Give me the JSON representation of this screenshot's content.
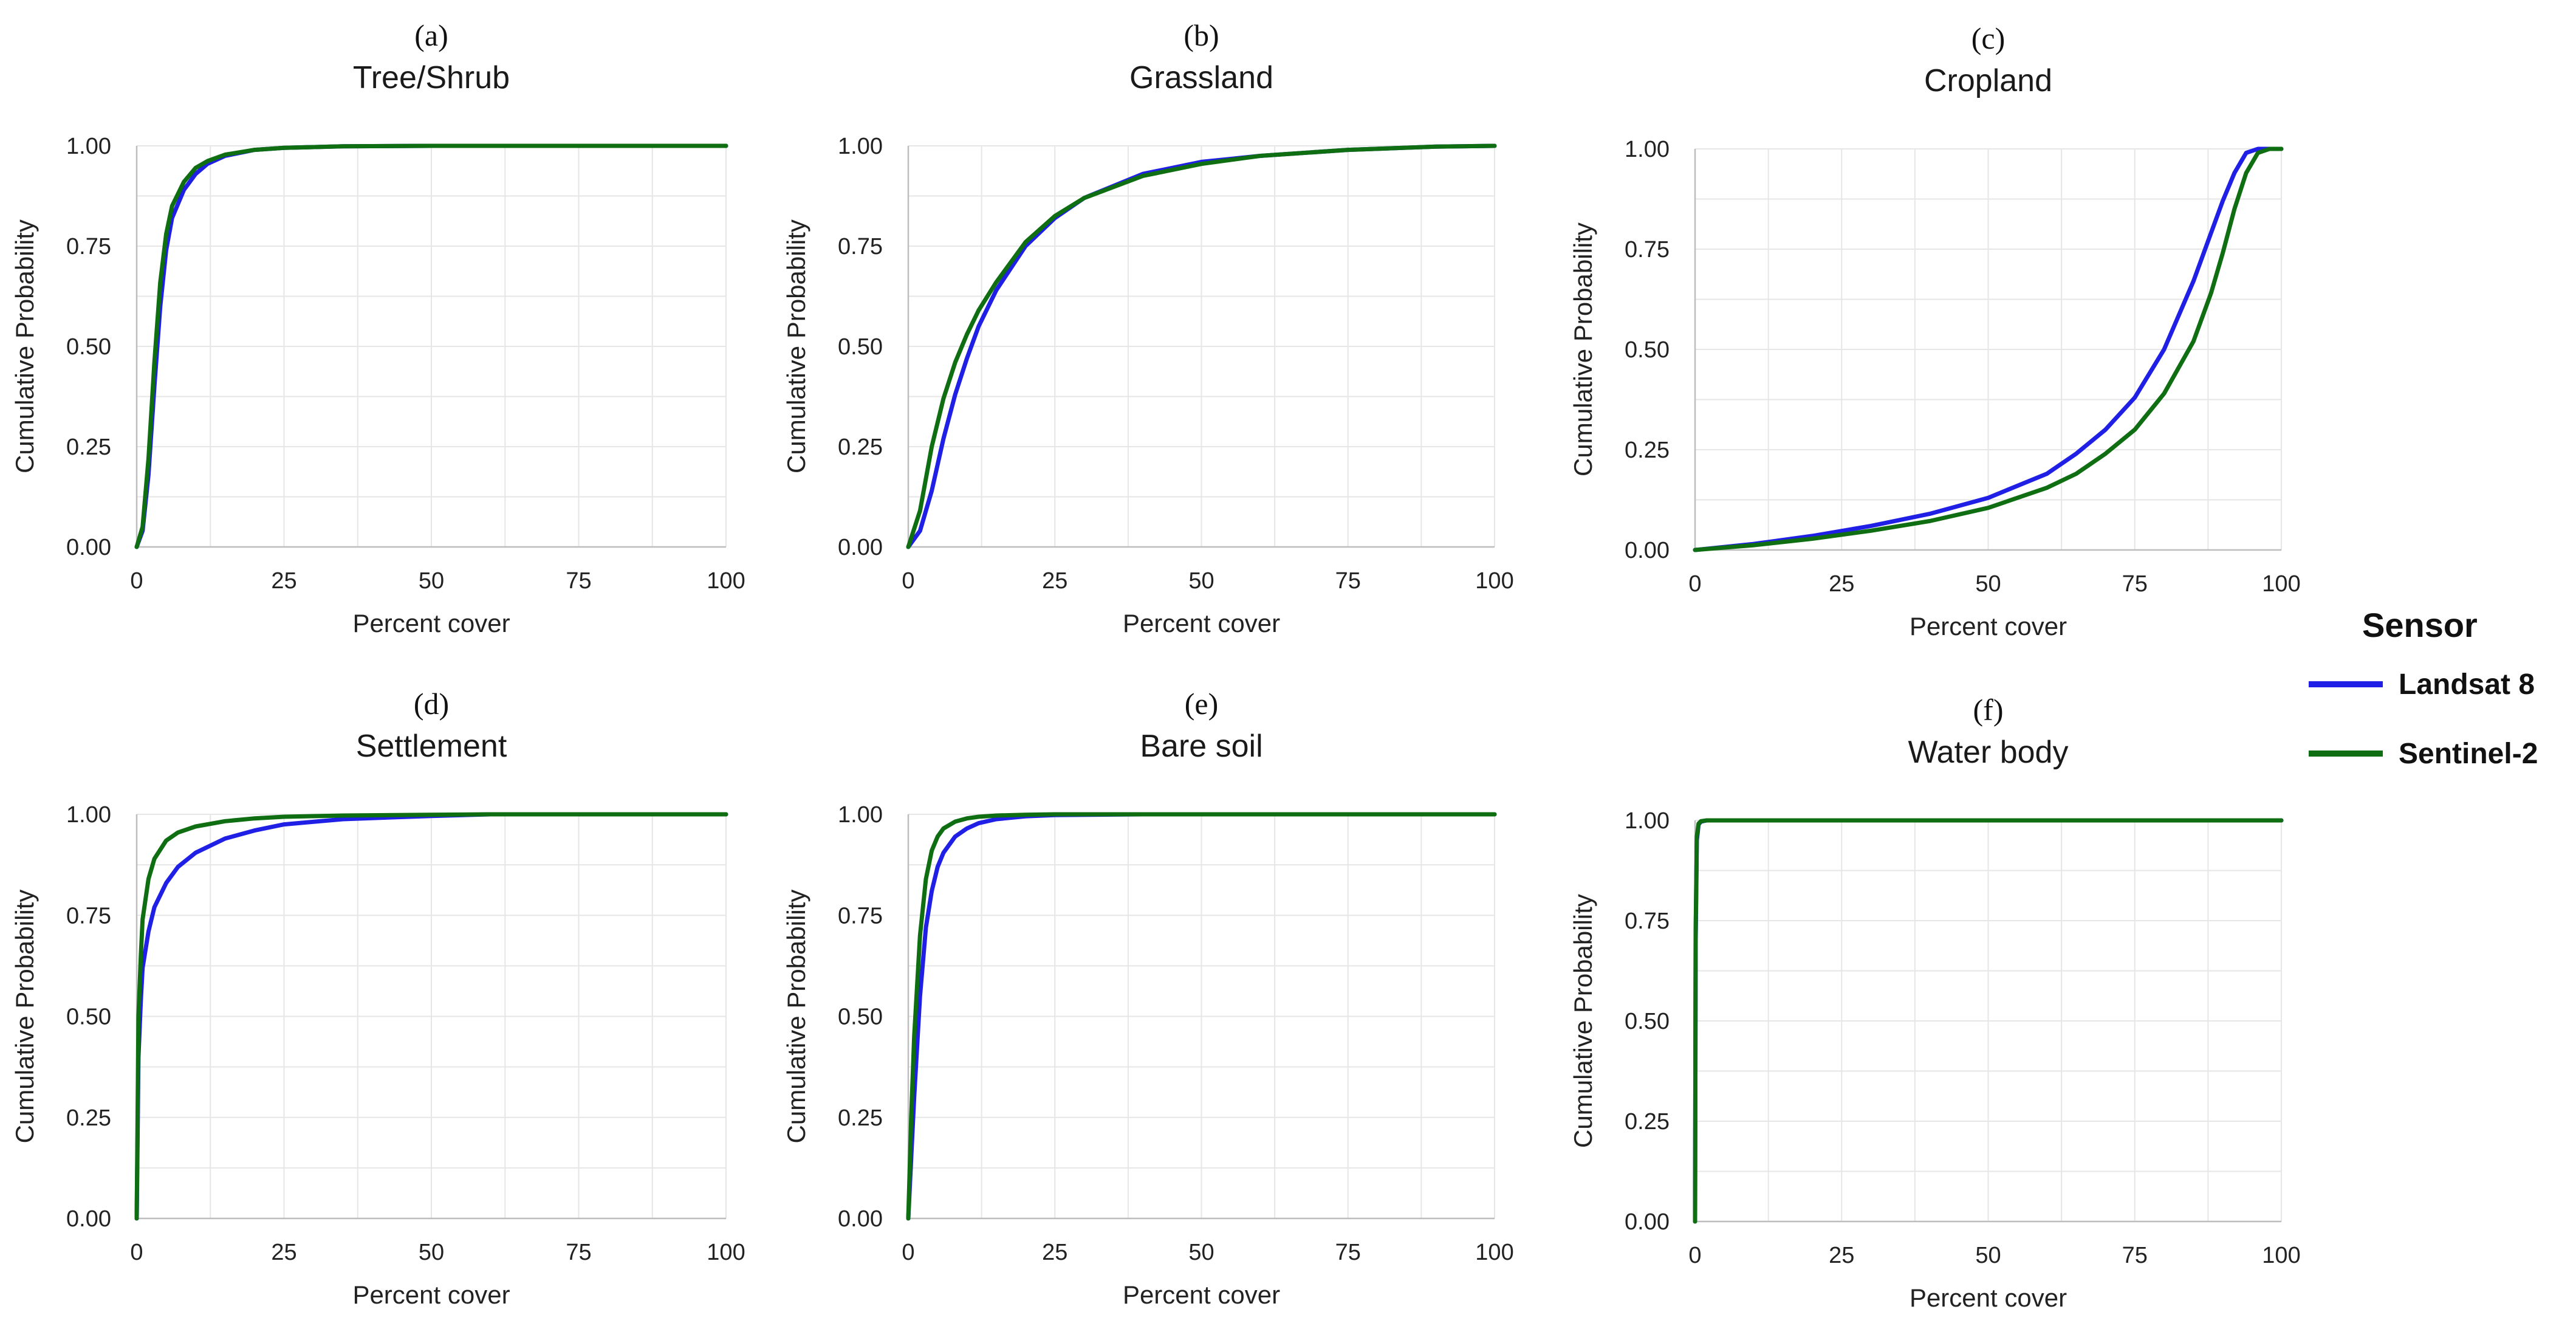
{
  "colors": {
    "landsat": "#1f1fe6",
    "sentinel": "#0f6e12",
    "grid": "#e6e6e6",
    "axis": "#bdbdbd"
  },
  "legend": {
    "title": "Sensor",
    "entries": [
      {
        "name": "Landsat 8",
        "color": "#1f1fe6"
      },
      {
        "name": "Sentinel-2",
        "color": "#0f6e12"
      }
    ]
  },
  "chart_data": [
    {
      "type": "line",
      "letter": "(a)",
      "title": "Tree/Shrub",
      "xlabel": "Percent cover",
      "ylabel": "Cumulative Probability",
      "xlim": [
        0,
        100
      ],
      "ylim": [
        0,
        1
      ],
      "xticks": [
        "0",
        "25",
        "50",
        "75",
        "100"
      ],
      "yticks": [
        "0.00",
        "0.25",
        "0.50",
        "0.75",
        "1.00"
      ],
      "series": [
        {
          "name": "Landsat 8",
          "x": [
            0,
            1,
            2,
            3,
            4,
            5,
            6,
            8,
            10,
            12,
            15,
            20,
            25,
            35,
            50,
            75,
            100
          ],
          "y": [
            0,
            0.04,
            0.18,
            0.4,
            0.6,
            0.74,
            0.82,
            0.89,
            0.93,
            0.955,
            0.975,
            0.99,
            0.995,
            0.999,
            1,
            1,
            1
          ]
        },
        {
          "name": "Sentinel-2",
          "x": [
            0,
            1,
            2,
            3,
            4,
            5,
            6,
            8,
            10,
            12,
            15,
            20,
            25,
            35,
            50,
            75,
            100
          ],
          "y": [
            0,
            0.05,
            0.22,
            0.46,
            0.66,
            0.78,
            0.85,
            0.91,
            0.945,
            0.962,
            0.978,
            0.99,
            0.995,
            0.999,
            1,
            1,
            1
          ]
        }
      ]
    },
    {
      "type": "line",
      "letter": "(b)",
      "title": "Grassland",
      "xlabel": "Percent cover",
      "ylabel": "Cumulative Probability",
      "xlim": [
        0,
        100
      ],
      "ylim": [
        0,
        1
      ],
      "xticks": [
        "0",
        "25",
        "50",
        "75",
        "100"
      ],
      "yticks": [
        "0.00",
        "0.25",
        "0.50",
        "0.75",
        "1.00"
      ],
      "series": [
        {
          "name": "Landsat 8",
          "x": [
            0,
            2,
            4,
            6,
            8,
            10,
            12,
            15,
            20,
            25,
            30,
            40,
            50,
            60,
            75,
            90,
            100
          ],
          "y": [
            0,
            0.04,
            0.14,
            0.27,
            0.38,
            0.47,
            0.55,
            0.64,
            0.75,
            0.82,
            0.87,
            0.93,
            0.96,
            0.975,
            0.99,
            0.998,
            1
          ]
        },
        {
          "name": "Sentinel-2",
          "x": [
            0,
            2,
            4,
            6,
            8,
            10,
            12,
            15,
            20,
            25,
            30,
            40,
            50,
            60,
            75,
            90,
            100
          ],
          "y": [
            0,
            0.09,
            0.25,
            0.37,
            0.46,
            0.53,
            0.59,
            0.66,
            0.76,
            0.825,
            0.87,
            0.925,
            0.955,
            0.975,
            0.99,
            0.998,
            1
          ]
        }
      ]
    },
    {
      "type": "line",
      "letter": "(c)",
      "title": "Cropland",
      "xlabel": "Percent cover",
      "ylabel": "Cumulative Probability",
      "xlim": [
        0,
        100
      ],
      "ylim": [
        0,
        1
      ],
      "xticks": [
        "0",
        "25",
        "50",
        "75",
        "100"
      ],
      "yticks": [
        "0.00",
        "0.25",
        "0.50",
        "0.75",
        "1.00"
      ],
      "series": [
        {
          "name": "Landsat 8",
          "x": [
            0,
            10,
            20,
            30,
            40,
            50,
            60,
            65,
            70,
            75,
            80,
            85,
            88,
            90,
            92,
            94,
            96,
            100
          ],
          "y": [
            0,
            0.015,
            0.035,
            0.06,
            0.09,
            0.13,
            0.19,
            0.24,
            0.3,
            0.38,
            0.5,
            0.67,
            0.79,
            0.87,
            0.94,
            0.99,
            1,
            1
          ]
        },
        {
          "name": "Sentinel-2",
          "x": [
            0,
            10,
            20,
            30,
            40,
            50,
            60,
            65,
            70,
            75,
            80,
            85,
            88,
            90,
            92,
            94,
            96,
            98,
            100
          ],
          "y": [
            0,
            0.012,
            0.028,
            0.048,
            0.072,
            0.105,
            0.155,
            0.19,
            0.24,
            0.3,
            0.39,
            0.52,
            0.64,
            0.74,
            0.85,
            0.94,
            0.99,
            1,
            1
          ]
        }
      ]
    },
    {
      "type": "line",
      "letter": "(d)",
      "title": "Settlement",
      "xlabel": "Percent cover",
      "ylabel": "Cumulative Probability",
      "xlim": [
        0,
        100
      ],
      "ylim": [
        0,
        1
      ],
      "xticks": [
        "0",
        "25",
        "50",
        "75",
        "100"
      ],
      "yticks": [
        "0.00",
        "0.25",
        "0.50",
        "0.75",
        "1.00"
      ],
      "series": [
        {
          "name": "Landsat 8",
          "x": [
            0,
            0.3,
            0.7,
            1,
            2,
            3,
            5,
            7,
            10,
            15,
            20,
            25,
            35,
            50,
            60,
            75,
            100
          ],
          "y": [
            0,
            0.4,
            0.54,
            0.62,
            0.71,
            0.77,
            0.83,
            0.87,
            0.905,
            0.94,
            0.96,
            0.975,
            0.988,
            0.996,
            1,
            1,
            1
          ]
        },
        {
          "name": "Sentinel-2",
          "x": [
            0,
            0.3,
            0.7,
            1,
            2,
            3,
            5,
            7,
            10,
            15,
            20,
            25,
            35,
            50,
            60,
            75,
            100
          ],
          "y": [
            0,
            0.5,
            0.65,
            0.74,
            0.84,
            0.89,
            0.935,
            0.955,
            0.97,
            0.983,
            0.99,
            0.994,
            0.997,
            0.999,
            1,
            1,
            1
          ]
        }
      ]
    },
    {
      "type": "line",
      "letter": "(e)",
      "title": "Bare soil",
      "xlabel": "Percent cover",
      "ylabel": "Cumulative Probability",
      "xlim": [
        0,
        100
      ],
      "ylim": [
        0,
        1
      ],
      "xticks": [
        "0",
        "25",
        "50",
        "75",
        "100"
      ],
      "yticks": [
        "0.00",
        "0.25",
        "0.50",
        "0.75",
        "1.00"
      ],
      "series": [
        {
          "name": "Landsat 8",
          "x": [
            0,
            0.5,
            1,
            2,
            3,
            4,
            5,
            6,
            8,
            10,
            12,
            15,
            20,
            25,
            40,
            60,
            100
          ],
          "y": [
            0,
            0.15,
            0.3,
            0.55,
            0.72,
            0.81,
            0.87,
            0.905,
            0.945,
            0.965,
            0.978,
            0.988,
            0.995,
            0.998,
            1,
            1,
            1
          ]
        },
        {
          "name": "Sentinel-2",
          "x": [
            0,
            0.5,
            1,
            2,
            3,
            4,
            5,
            6,
            8,
            10,
            12,
            15,
            20,
            25,
            40,
            60,
            100
          ],
          "y": [
            0,
            0.25,
            0.45,
            0.7,
            0.84,
            0.91,
            0.945,
            0.965,
            0.982,
            0.99,
            0.994,
            0.997,
            0.999,
            1,
            1,
            1,
            1
          ]
        }
      ]
    },
    {
      "type": "line",
      "letter": "(f)",
      "title": "Water body",
      "xlabel": "Percent cover",
      "ylabel": "Cumulative Probability",
      "xlim": [
        0,
        100
      ],
      "ylim": [
        0,
        1
      ],
      "xticks": [
        "0",
        "25",
        "50",
        "75",
        "100"
      ],
      "yticks": [
        "0.00",
        "0.25",
        "0.50",
        "0.75",
        "1.00"
      ],
      "series": [
        {
          "name": "Landsat 8",
          "x": [
            0,
            0.1,
            0.3,
            0.6,
            1,
            2,
            5,
            100
          ],
          "y": [
            0,
            0.7,
            0.95,
            0.99,
            0.997,
            1,
            1,
            1
          ]
        },
        {
          "name": "Sentinel-2",
          "x": [
            0,
            0.1,
            0.3,
            0.6,
            1,
            2,
            5,
            100
          ],
          "y": [
            0,
            0.72,
            0.96,
            0.992,
            0.998,
            1,
            1,
            1
          ]
        }
      ]
    }
  ]
}
